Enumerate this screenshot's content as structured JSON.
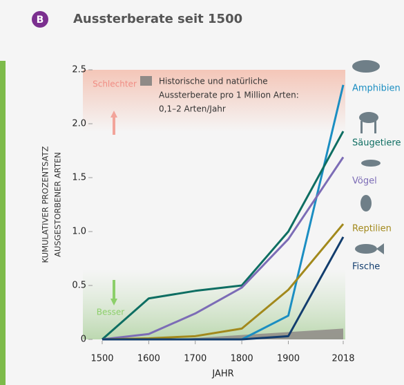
{
  "chart_data": {
    "type": "line",
    "badge": "B",
    "title": "Aussterberate seit 1500",
    "x_label": "JAHR",
    "y_label": [
      "KUMULATIVER PROZENTSATZ",
      "AUSGESTORBENER ARTEN"
    ],
    "x": [
      1500,
      1600,
      1700,
      1800,
      1900,
      2018
    ],
    "xlim": [
      1500,
      2018
    ],
    "xticks": [
      1500,
      1600,
      1700,
      1800,
      1900,
      2018
    ],
    "ylim": [
      0,
      2.5
    ],
    "yticks": [
      0,
      0.5,
      {
        "value": 1,
        "label": "1.0"
      },
      1.5,
      {
        "value": 2,
        "label": "2.0"
      },
      2.5
    ],
    "series": [
      {
        "name": "Amphibien",
        "color": "#1b8ec2",
        "values": [
          0,
          0,
          0,
          0,
          0.22,
          2.36
        ]
      },
      {
        "name": "Säugetiere",
        "color": "#0e6e62",
        "values": [
          0,
          0.38,
          0.45,
          0.5,
          1.0,
          1.93
        ]
      },
      {
        "name": "Vögel",
        "color": "#7c6cb6",
        "values": [
          0,
          0.05,
          0.24,
          0.48,
          0.93,
          1.69
        ]
      },
      {
        "name": "Reptilien",
        "color": "#a2891c",
        "values": [
          0,
          0.01,
          0.03,
          0.1,
          0.46,
          1.07
        ]
      },
      {
        "name": "Fische",
        "color": "#123d6e",
        "values": [
          0,
          0,
          0,
          0,
          0.03,
          0.95
        ]
      }
    ],
    "historic_band": {
      "x": [
        1650,
        2018
      ],
      "values": [
        0,
        0.1
      ],
      "color": "#8f8a87",
      "label": [
        "Historische und natürliche",
        "Aussterberate pro 1 Million Arten:",
        "0,1–2 Arten/Jahr"
      ]
    },
    "annotations": {
      "worse": "Schlechter",
      "better": "Besser"
    }
  }
}
